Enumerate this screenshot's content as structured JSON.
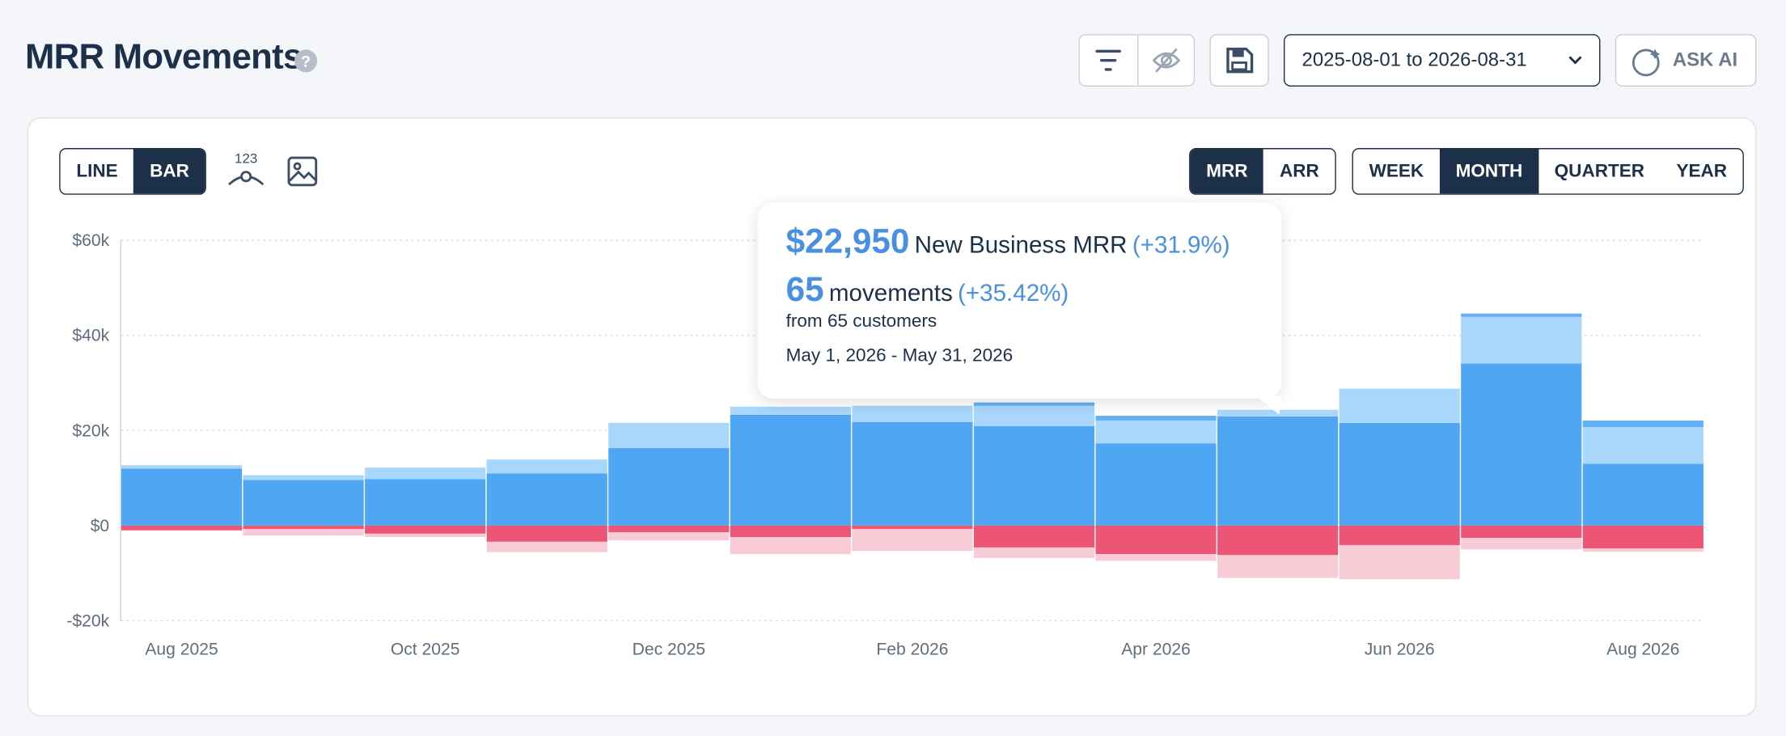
{
  "header": {
    "title": "MRR Movements",
    "date_range": "2025-08-01 to 2026-08-31",
    "ask_ai": "ASK AI"
  },
  "controls": {
    "chart_types": [
      "LINE",
      "BAR"
    ],
    "labels_icon": "123",
    "metrics": [
      "MRR",
      "ARR"
    ],
    "periods": [
      "WEEK",
      "MONTH",
      "QUARTER",
      "YEAR"
    ]
  },
  "tooltip": {
    "amount": "$22,950",
    "series": "New Business MRR",
    "amount_change": "(+31.9%)",
    "count": "65",
    "count_label": "movements",
    "count_change": "(+35.42%)",
    "customers": "from 65 customers",
    "period": "May 1, 2026 - May 31, 2026"
  },
  "chart_data": {
    "type": "bar",
    "stacked": true,
    "grid": true,
    "categories": [
      "Aug 2025",
      null,
      "Oct 2025",
      null,
      "Dec 2025",
      null,
      "Feb 2026",
      null,
      "Apr 2026",
      null,
      "Jun 2026",
      null,
      "Aug 2026"
    ],
    "series": [
      {
        "color": "#4fa6f3",
        "values": [
          12.0,
          9.6,
          9.8,
          11.0,
          16.3,
          23.3,
          21.8,
          20.9,
          17.3,
          22.95,
          21.6,
          34.1,
          13.0
        ]
      },
      {
        "color": "#a9d6fb",
        "values": [
          0.7,
          1.0,
          2.4,
          2.9,
          5.3,
          1.7,
          3.4,
          4.3,
          4.8,
          1.4,
          7.2,
          9.8,
          7.7
        ]
      },
      {
        "color": "#62b0f5",
        "values": [
          0,
          0,
          0,
          0,
          0,
          0,
          0,
          0.7,
          1.0,
          0,
          0,
          0.7,
          1.4
        ]
      },
      {
        "color": "#ec5573",
        "values": [
          -1.0,
          -0.7,
          -1.7,
          -3.4,
          -1.4,
          -2.4,
          -0.7,
          -4.6,
          -6.0,
          -6.2,
          -4.1,
          -2.6,
          -4.8
        ]
      },
      {
        "color": "#f8ccd7",
        "values": [
          0,
          -1.4,
          -0.7,
          -2.2,
          -1.7,
          -3.6,
          -4.6,
          -2.2,
          -1.4,
          -4.8,
          -7.2,
          -2.4,
          -0.7
        ]
      }
    ],
    "ylim": [
      -20,
      60
    ],
    "yticks": [
      {
        "value": -20,
        "label": "-$20k"
      },
      {
        "value": 0,
        "label": "$0"
      },
      {
        "value": 20,
        "label": "$20k"
      },
      {
        "value": 40,
        "label": "$40k"
      },
      {
        "value": 60,
        "label": "$60k"
      }
    ]
  }
}
